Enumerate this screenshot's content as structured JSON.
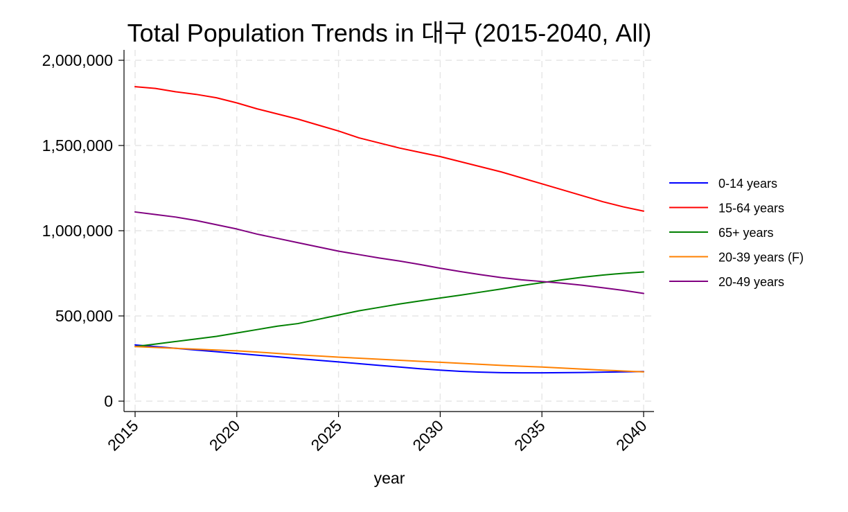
{
  "chart_data": {
    "type": "line",
    "title": "Total Population Trends in 대구 (2015-2040, All)",
    "xlabel": "year",
    "ylabel": "",
    "xlim": [
      2015,
      2040
    ],
    "ylim": [
      0,
      2000000
    ],
    "x_ticks": [
      2015,
      2020,
      2025,
      2030,
      2035,
      2040
    ],
    "x_tick_labels": [
      "2015",
      "2020",
      "2025",
      "2030",
      "2035",
      "2040"
    ],
    "y_ticks": [
      0,
      500000,
      1000000,
      1500000,
      2000000
    ],
    "y_tick_labels": [
      "0",
      "500,000",
      "1,000,000",
      "1,500,000",
      "2,000,000"
    ],
    "grid": true,
    "legend_position": "right",
    "x": [
      2015,
      2016,
      2017,
      2018,
      2019,
      2020,
      2021,
      2022,
      2023,
      2024,
      2025,
      2026,
      2027,
      2028,
      2029,
      2030,
      2031,
      2032,
      2033,
      2034,
      2035,
      2036,
      2037,
      2038,
      2039,
      2040
    ],
    "series": [
      {
        "name": "0-14 years",
        "color": "#0000ff",
        "values": [
          330000,
          320000,
          310000,
          300000,
          290000,
          280000,
          270000,
          260000,
          250000,
          240000,
          230000,
          220000,
          210000,
          200000,
          190000,
          182000,
          175000,
          170000,
          167000,
          166000,
          166000,
          167000,
          168000,
          170000,
          172000,
          174000
        ]
      },
      {
        "name": "15-64 years",
        "color": "#ff0000",
        "values": [
          1845000,
          1835000,
          1815000,
          1800000,
          1780000,
          1750000,
          1715000,
          1685000,
          1655000,
          1620000,
          1585000,
          1545000,
          1515000,
          1485000,
          1460000,
          1435000,
          1405000,
          1375000,
          1345000,
          1310000,
          1275000,
          1240000,
          1205000,
          1170000,
          1140000,
          1115000
        ]
      },
      {
        "name": "65+ years",
        "color": "#008000",
        "values": [
          320000,
          335000,
          350000,
          365000,
          380000,
          400000,
          420000,
          440000,
          455000,
          480000,
          505000,
          530000,
          550000,
          570000,
          588000,
          605000,
          622000,
          640000,
          658000,
          678000,
          695000,
          712000,
          727000,
          740000,
          750000,
          758000
        ]
      },
      {
        "name": "20-39 years (F)",
        "color": "#ff8000",
        "values": [
          320000,
          315000,
          310000,
          305000,
          300000,
          295000,
          288000,
          280000,
          272000,
          265000,
          258000,
          252000,
          246000,
          240000,
          234000,
          228000,
          222000,
          216000,
          210000,
          205000,
          200000,
          194000,
          188000,
          182000,
          177000,
          172000
        ]
      },
      {
        "name": "20-49 years",
        "color": "#800080",
        "values": [
          1110000,
          1095000,
          1080000,
          1060000,
          1035000,
          1010000,
          980000,
          955000,
          930000,
          905000,
          880000,
          860000,
          840000,
          822000,
          802000,
          780000,
          760000,
          742000,
          725000,
          712000,
          702000,
          692000,
          680000,
          665000,
          650000,
          632000
        ]
      }
    ]
  }
}
